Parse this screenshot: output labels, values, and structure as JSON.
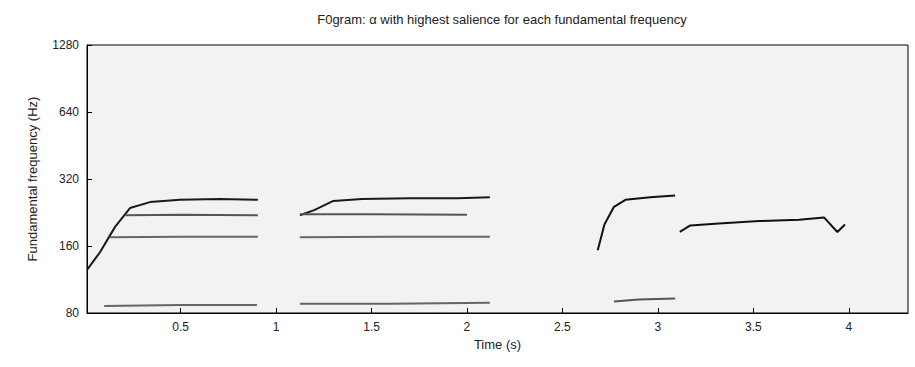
{
  "chart_data": {
    "type": "line",
    "title": "F0gram: α with highest salience for each fundamental frequency",
    "x_label": "Time (s)",
    "y_label": "Fundamental frequency (Hz)",
    "xlim": [
      0.01,
      4.31
    ],
    "xticks": [
      0.5,
      1,
      1.5,
      2,
      2.5,
      3,
      3.5,
      4
    ],
    "ylim": [
      80,
      1280
    ],
    "yticks": [
      80,
      160,
      320,
      640,
      1280
    ],
    "log": "y",
    "grid": false,
    "series": [
      {
        "color": "#1a1a1a",
        "x": [
          0.01,
          0.078,
          0.157,
          0.235,
          0.34,
          0.497,
          0.706,
          0.905
        ],
        "values": [
          125,
          150,
          195,
          237,
          252,
          258,
          260,
          258
        ]
      },
      {
        "color": "#1a1a1a",
        "x": [
          1.125,
          1.2,
          1.3,
          1.45,
          1.7,
          1.95,
          2.12
        ],
        "values": [
          220,
          232,
          255,
          260,
          262,
          262,
          265
        ]
      },
      {
        "color": "#111111",
        "x": [
          2.685,
          2.72,
          2.77,
          2.83,
          2.96,
          3.09
        ],
        "values": [
          153,
          200,
          240,
          258,
          265,
          270
        ]
      },
      {
        "color": "#111111",
        "x": [
          3.115,
          3.17,
          3.32,
          3.53,
          3.74,
          3.87,
          3.94,
          3.98
        ],
        "values": [
          185,
          198,
          202,
          207,
          210,
          215,
          185,
          200
        ]
      },
      {
        "color": "#555555",
        "x": [
          0.21,
          0.5,
          0.905
        ],
        "values": [
          220,
          221,
          220
        ]
      },
      {
        "color": "#666666",
        "x": [
          0.13,
          0.5,
          0.905
        ],
        "values": [
          175,
          176,
          176
        ]
      },
      {
        "color": "#666666",
        "x": [
          0.1,
          0.5,
          0.9
        ],
        "values": [
          86,
          87,
          87
        ]
      },
      {
        "color": "#555555",
        "x": [
          1.125,
          1.5,
          2.0
        ],
        "values": [
          222,
          222,
          221
        ]
      },
      {
        "color": "#666666",
        "x": [
          1.125,
          1.6,
          2.12
        ],
        "values": [
          175,
          176,
          176
        ]
      },
      {
        "color": "#666666",
        "x": [
          1.125,
          1.6,
          2.12
        ],
        "values": [
          88,
          88,
          89
        ]
      },
      {
        "color": "#555555",
        "x": [
          2.77,
          2.9,
          3.09
        ],
        "values": [
          90,
          92,
          93
        ]
      }
    ]
  }
}
